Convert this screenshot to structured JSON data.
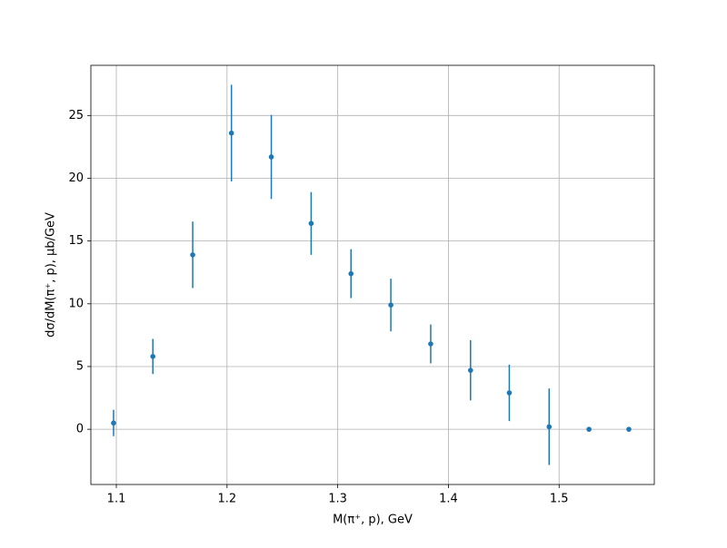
{
  "chart_data": {
    "type": "scatter",
    "x_label": "M(π⁺, p), GeV",
    "y_label": "dσ/dM(π⁺, p), μb/GeV",
    "x": [
      1.0975,
      1.133,
      1.169,
      1.204,
      1.24,
      1.276,
      1.312,
      1.348,
      1.384,
      1.42,
      1.455,
      1.491,
      1.527,
      1.563
    ],
    "values": [
      0.5,
      5.8,
      13.9,
      23.6,
      21.7,
      16.4,
      12.4,
      9.9,
      6.8,
      4.7,
      2.9,
      0.2,
      0,
      0
    ],
    "errors": [
      1.05,
      1.4,
      2.65,
      3.85,
      3.35,
      2.5,
      1.95,
      2.1,
      1.55,
      2.4,
      2.25,
      3.05,
      0,
      0
    ],
    "color": "#1f77b4",
    "xlim": [
      1.077,
      1.586
    ],
    "ylim": [
      -4.4,
      29.0
    ],
    "xticks": [
      1.1,
      1.2,
      1.3,
      1.4,
      1.5
    ],
    "yticks": [
      0,
      5,
      10,
      15,
      20,
      25
    ],
    "grid": true
  }
}
